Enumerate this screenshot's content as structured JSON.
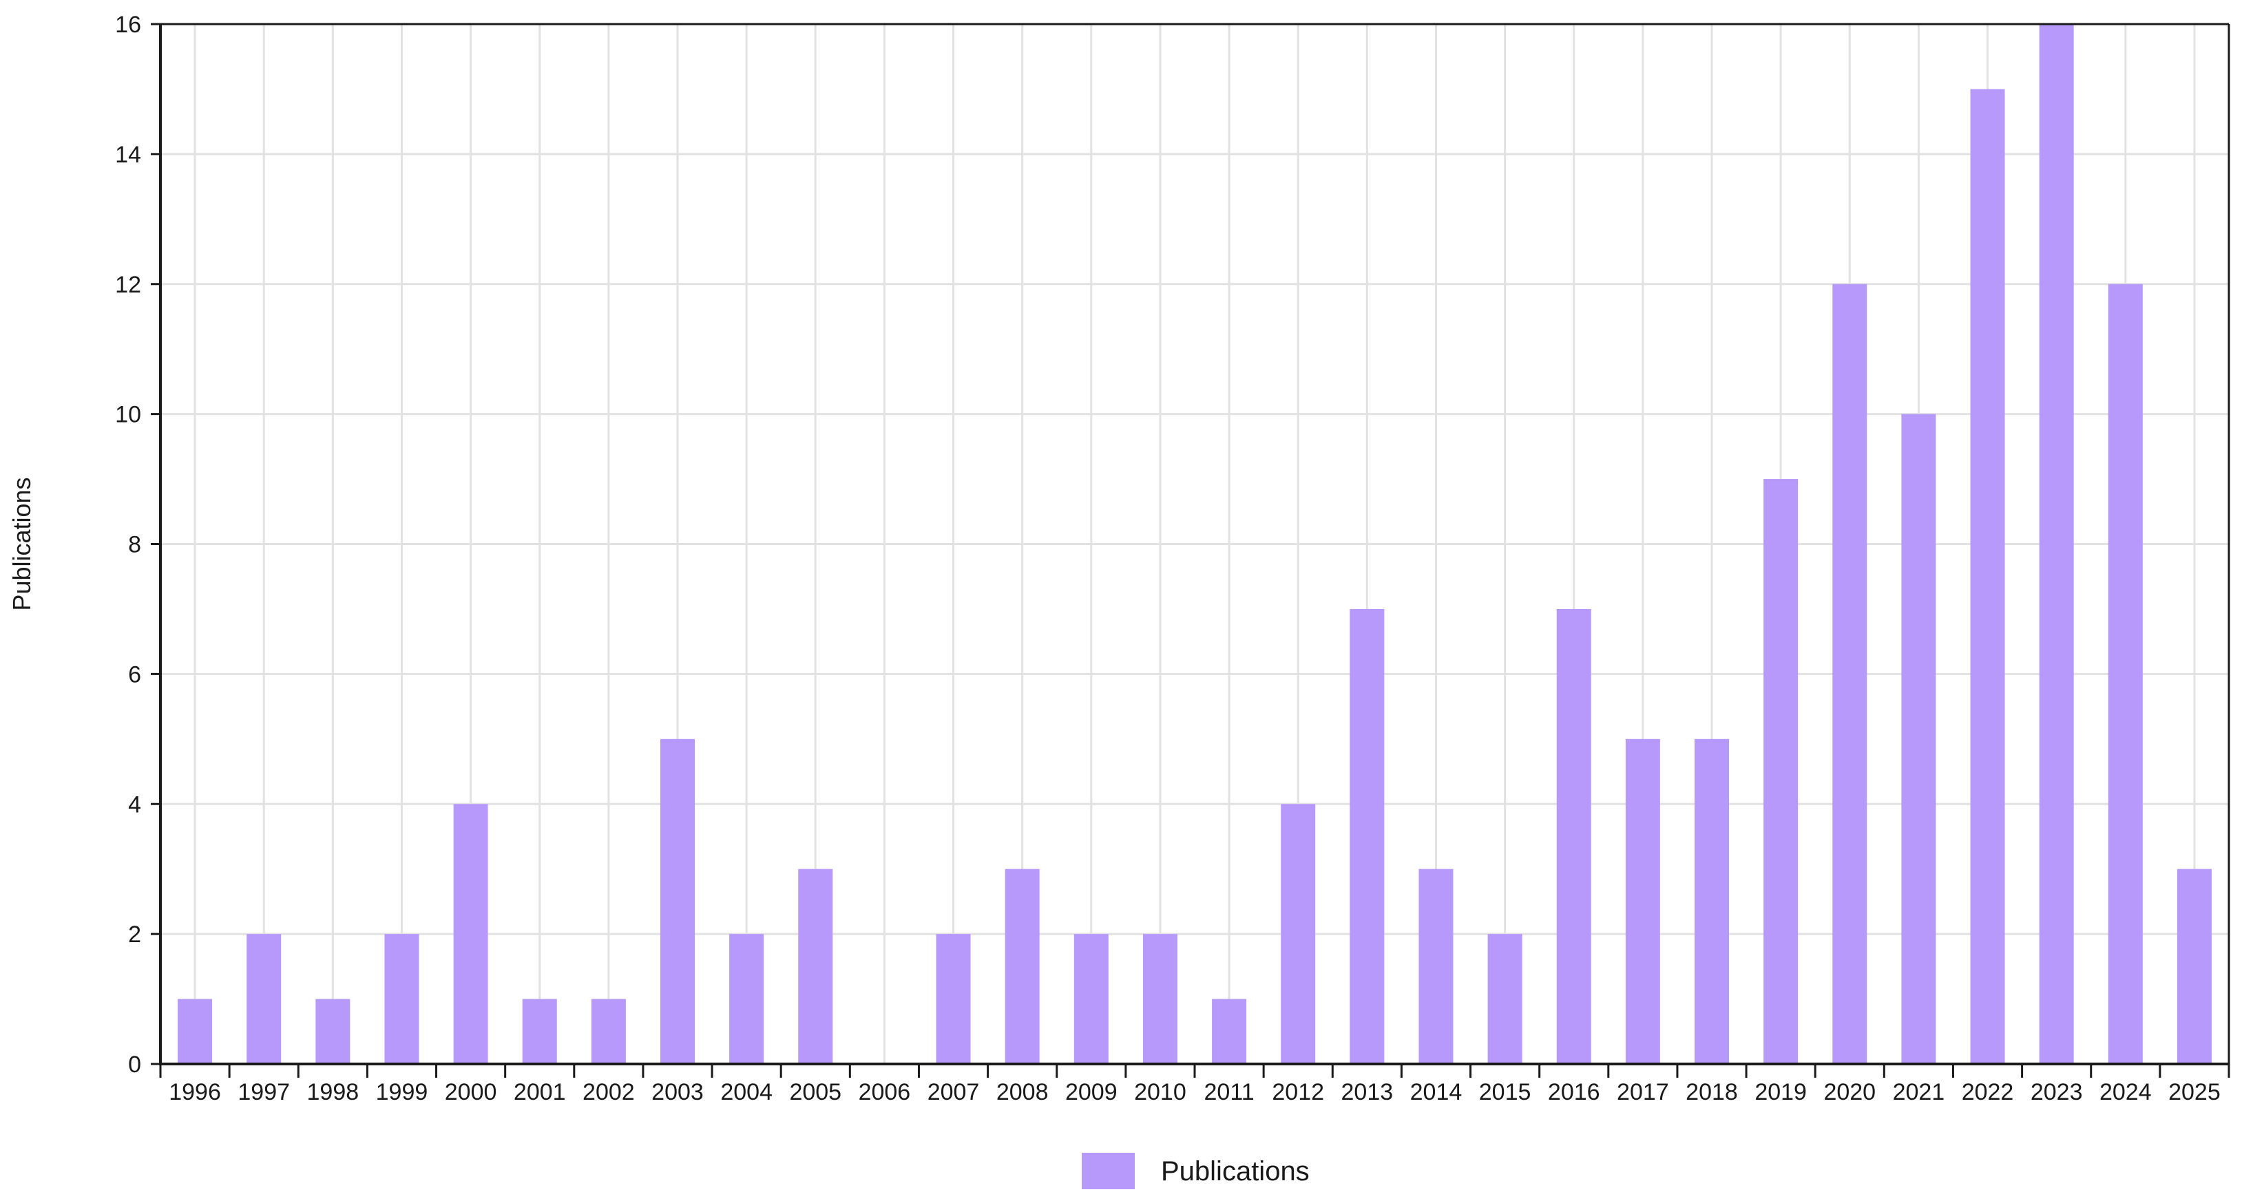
{
  "chart_data": {
    "type": "bar",
    "title": "",
    "xlabel": "",
    "ylabel": "Publications",
    "categories": [
      "1996",
      "1997",
      "1998",
      "1999",
      "2000",
      "2001",
      "2002",
      "2003",
      "2004",
      "2005",
      "2006",
      "2007",
      "2008",
      "2009",
      "2010",
      "2011",
      "2012",
      "2013",
      "2014",
      "2015",
      "2016",
      "2017",
      "2018",
      "2019",
      "2020",
      "2021",
      "2022",
      "2023",
      "2024",
      "2025"
    ],
    "series": [
      {
        "name": "Publications",
        "color": "#b799fb",
        "values": [
          1,
          2,
          1,
          2,
          4,
          1,
          1,
          5,
          2,
          3,
          0,
          2,
          3,
          2,
          2,
          1,
          4,
          7,
          3,
          2,
          7,
          5,
          5,
          9,
          12,
          10,
          15,
          16,
          12,
          3
        ]
      }
    ],
    "ylim": [
      0,
      16
    ],
    "yticks": [
      0,
      2,
      4,
      6,
      8,
      10,
      12,
      14,
      16
    ],
    "grid": true,
    "legend_position": "bottom-center",
    "colors": {
      "bar": "#b799fb",
      "grid": "#e2e2e2",
      "axis": "#1a1a1a"
    }
  }
}
